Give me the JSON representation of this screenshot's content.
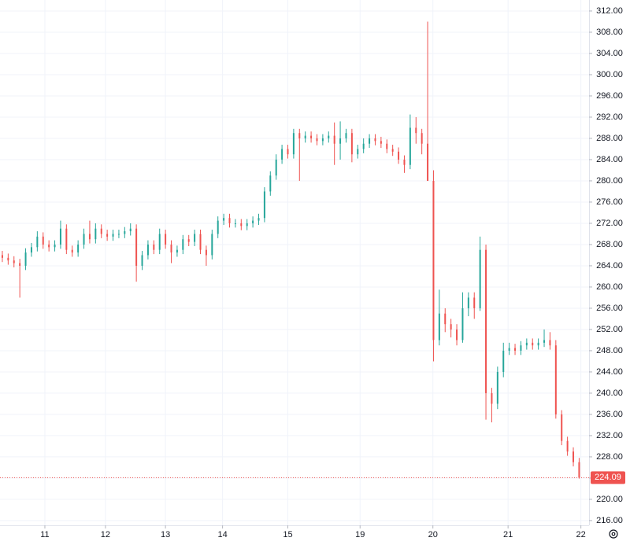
{
  "chart_data": {
    "type": "candlestick",
    "up_color": "#26a69a",
    "down_color": "#ef5350",
    "grid": true,
    "xlim": [
      -0.4,
      100.7
    ],
    "ylim": [
      215.1,
      314.07
    ],
    "xticks": [
      {
        "value": 7.3,
        "label": "11"
      },
      {
        "value": 17.7,
        "label": "12"
      },
      {
        "value": 28,
        "label": "13"
      },
      {
        "value": 37.8,
        "label": "14"
      },
      {
        "value": 49,
        "label": "15"
      },
      {
        "value": 61.4,
        "label": "19"
      },
      {
        "value": 73.9,
        "label": "20"
      },
      {
        "value": 86.8,
        "label": "21"
      },
      {
        "value": 99.3,
        "label": "22"
      }
    ],
    "yticks": [
      {
        "value": 216,
        "label": "216.00"
      },
      {
        "value": 220,
        "label": "220.00"
      },
      {
        "value": 224,
        "label": "224.00"
      },
      {
        "value": 228,
        "label": "228.00"
      },
      {
        "value": 232,
        "label": "232.00"
      },
      {
        "value": 236,
        "label": "236.00"
      },
      {
        "value": 240,
        "label": "240.00"
      },
      {
        "value": 244,
        "label": "244.00"
      },
      {
        "value": 248,
        "label": "248.00"
      },
      {
        "value": 252,
        "label": "252.00"
      },
      {
        "value": 256,
        "label": "256.00"
      },
      {
        "value": 260,
        "label": "260.00"
      },
      {
        "value": 264,
        "label": "264.00"
      },
      {
        "value": 268,
        "label": "268.00"
      },
      {
        "value": 272,
        "label": "272.00"
      },
      {
        "value": 276,
        "label": "276.00"
      },
      {
        "value": 280,
        "label": "280.00"
      },
      {
        "value": 284,
        "label": "284.00"
      },
      {
        "value": 288,
        "label": "288.00"
      },
      {
        "value": 292,
        "label": "292.00"
      },
      {
        "value": 296,
        "label": "296.00"
      },
      {
        "value": 300,
        "label": "300.00"
      },
      {
        "value": 304,
        "label": "304.00"
      },
      {
        "value": 308,
        "label": "308.00"
      },
      {
        "value": 312,
        "label": "312.00"
      }
    ],
    "x": [
      0,
      1,
      2,
      3,
      4,
      5,
      6,
      7,
      8,
      9,
      10,
      11,
      12,
      13,
      14,
      15,
      16,
      17,
      18,
      19,
      20,
      21,
      22,
      23,
      24,
      25,
      26,
      27,
      28,
      29,
      30,
      31,
      32,
      33,
      34,
      35,
      36,
      37,
      38,
      39,
      40,
      41,
      42,
      43,
      44,
      45,
      46,
      47,
      48,
      49,
      50,
      51,
      52,
      53,
      54,
      55,
      56,
      57,
      58,
      59,
      60,
      61,
      62,
      63,
      64,
      65,
      66,
      67,
      68,
      69,
      70,
      71,
      72,
      73,
      74,
      75,
      76,
      77,
      78,
      79,
      80,
      81,
      82,
      83,
      84,
      85,
      86,
      87,
      88,
      89,
      90,
      91,
      92,
      93,
      94,
      95,
      96,
      97,
      98,
      99
    ],
    "open": [
      266,
      265.5,
      265,
      264.5,
      264,
      266.5,
      267.5,
      269.5,
      268,
      267.5,
      268,
      271,
      267,
      266.5,
      268,
      270,
      269,
      271,
      270,
      269.5,
      270,
      270,
      270.5,
      271,
      264,
      266,
      268,
      267,
      270,
      268,
      266.5,
      267,
      269,
      268.5,
      270,
      267,
      266,
      270,
      272.5,
      273,
      272,
      272,
      271.5,
      272,
      272.5,
      273,
      278,
      281,
      284,
      286,
      285,
      289,
      288,
      288.5,
      288,
      287.5,
      288,
      288.5,
      287,
      288,
      289,
      285,
      286,
      287,
      288,
      287.5,
      287,
      286,
      285.5,
      284,
      283,
      290,
      289,
      287,
      280,
      250,
      255,
      253,
      252,
      250,
      256,
      258,
      256,
      267,
      240,
      238,
      244,
      248,
      248.5,
      248,
      249,
      249.5,
      249,
      249.5,
      250,
      249,
      236,
      231,
      229,
      227
    ],
    "high": [
      266.8,
      266.3,
      265.8,
      265.3,
      267.3,
      268.3,
      270.5,
      270.3,
      268.8,
      268.8,
      272.5,
      271.8,
      267.8,
      268.8,
      271,
      272.5,
      272,
      271.8,
      270.8,
      270.8,
      270.8,
      271.3,
      272,
      271.8,
      266.8,
      268.8,
      268.8,
      271,
      270.8,
      268.8,
      267.8,
      269.8,
      269.8,
      270.8,
      270.8,
      267.8,
      270.8,
      273.3,
      273.8,
      273.8,
      272.8,
      272.8,
      272.8,
      273.3,
      273.8,
      278.8,
      281.8,
      285,
      286.8,
      286.8,
      289.8,
      289.8,
      289.3,
      289.3,
      288.8,
      288.8,
      289.3,
      291,
      291.2,
      289.8,
      289.8,
      286.8,
      288,
      288.8,
      288.8,
      288.3,
      287.8,
      286.8,
      286.3,
      284.8,
      292.5,
      292,
      289.8,
      310,
      282,
      259.5,
      256,
      254,
      253,
      259,
      259,
      259,
      269.5,
      268,
      241,
      245,
      249.5,
      249.5,
      249.3,
      249.8,
      250.3,
      250.3,
      250.3,
      252,
      251.5,
      250,
      236.8,
      231.8,
      229.8,
      227.8
    ],
    "low": [
      264.7,
      264.2,
      263.7,
      258,
      263.2,
      265.7,
      266.7,
      267.2,
      266.7,
      266.7,
      267.2,
      266.2,
      265.7,
      265.7,
      267.2,
      268.2,
      268.2,
      269.2,
      268.7,
      268.7,
      269.2,
      269.2,
      269.7,
      261,
      263.2,
      265.2,
      266.2,
      266.2,
      267.2,
      264.5,
      265.7,
      266.2,
      267.7,
      267.7,
      266.2,
      264,
      265.2,
      269.2,
      271.7,
      271.2,
      271.2,
      270.7,
      270.7,
      271.2,
      271.7,
      272.2,
      277.2,
      280.2,
      283.2,
      284.2,
      284.2,
      280,
      287.2,
      287.2,
      286.7,
      286.7,
      287.2,
      283,
      284,
      287.2,
      283.5,
      284.2,
      285.2,
      286.2,
      286.7,
      286.2,
      285.2,
      284.7,
      283.2,
      281.5,
      282.2,
      287,
      285,
      280,
      246,
      249,
      251.5,
      250.5,
      249,
      249.5,
      254.5,
      254,
      255.5,
      235,
      234.5,
      237,
      243,
      247.2,
      247.2,
      247.2,
      248.2,
      248.2,
      248.2,
      248.7,
      248.2,
      235.2,
      230.2,
      228.2,
      226.2,
      223.9
    ],
    "close": [
      265.5,
      265,
      264.5,
      264,
      266.5,
      267.5,
      269.5,
      268,
      267.5,
      268,
      271,
      267,
      266.5,
      268,
      270,
      269,
      271,
      270,
      269.5,
      270,
      270,
      270.5,
      271,
      264,
      266,
      268,
      267,
      270,
      268,
      266.5,
      267,
      269,
      268.5,
      270,
      267,
      266,
      270,
      272.5,
      273,
      272,
      272,
      271.5,
      272,
      272.5,
      273,
      278,
      281,
      284,
      286,
      285,
      289,
      288,
      288.5,
      288,
      287.5,
      288,
      288.5,
      287,
      288,
      289,
      285,
      286,
      287,
      288,
      287.5,
      287,
      286,
      285.5,
      284,
      283,
      290,
      289,
      287,
      280,
      250,
      255,
      253,
      252,
      250,
      256,
      258,
      256,
      267,
      240,
      238,
      244,
      248,
      248.5,
      248,
      249,
      249.5,
      249,
      249.5,
      250,
      249,
      236,
      231,
      229,
      227,
      224.09
    ]
  }
}
